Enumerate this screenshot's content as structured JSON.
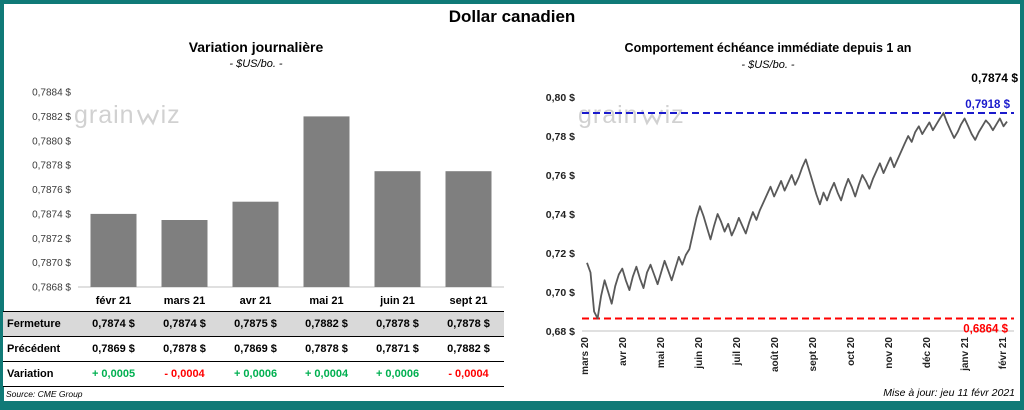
{
  "page": {
    "title": "Dollar canadien",
    "source": "Source: CME Group",
    "updated": "Mise à jour: jeu 11 févr 2021",
    "watermark": {
      "part1": "grain",
      "part2": "iz"
    }
  },
  "theme": {
    "teal": "#107a77",
    "positive": "#00b050",
    "negative": "#ff0000",
    "shaded_row": "#d9d9d9",
    "watermark_gray": "#c9c9c9"
  },
  "chart_data": [
    {
      "type": "bar",
      "title": "Variation journalière",
      "subtitle": "- $US/bo. -",
      "categories": [
        "févr 21",
        "mars 21",
        "avr 21",
        "mai 21",
        "juin 21",
        "sept 21"
      ],
      "values": [
        0.7874,
        0.78735,
        0.7875,
        0.7882,
        0.78775,
        0.78775
      ],
      "ylim": [
        0.7868,
        0.7884
      ],
      "ytick_values": [
        0.7868,
        0.787,
        0.7872,
        0.7874,
        0.7876,
        0.7878,
        0.788,
        0.7882,
        0.7884
      ],
      "ytick_labels": [
        "0,7868 $",
        "0,7870 $",
        "0,7872 $",
        "0,7874 $",
        "0,7876 $",
        "0,7878 $",
        "0,7880 $",
        "0,7882 $",
        "0,7884 $"
      ],
      "bar_color": "#7f7f7f",
      "grid": false,
      "legend": false
    },
    {
      "type": "line",
      "title": "Comportement échéance immédiate depuis 1 an",
      "subtitle": "- $US/bo. -",
      "categories": [
        "mars 20",
        "avr 20",
        "mai 20",
        "juin 20",
        "juil 20",
        "août 20",
        "sept 20",
        "oct 20",
        "nov 20",
        "déc 20",
        "janv 21",
        "févr 21"
      ],
      "values": [
        0.715,
        0.71,
        0.69,
        0.6864,
        0.698,
        0.706,
        0.7,
        0.694,
        0.703,
        0.709,
        0.712,
        0.706,
        0.701,
        0.708,
        0.713,
        0.707,
        0.702,
        0.71,
        0.714,
        0.709,
        0.704,
        0.71,
        0.716,
        0.711,
        0.706,
        0.712,
        0.718,
        0.714,
        0.719,
        0.722,
        0.73,
        0.738,
        0.744,
        0.739,
        0.733,
        0.727,
        0.734,
        0.74,
        0.736,
        0.731,
        0.735,
        0.729,
        0.733,
        0.738,
        0.734,
        0.73,
        0.736,
        0.741,
        0.737,
        0.742,
        0.746,
        0.75,
        0.754,
        0.749,
        0.753,
        0.757,
        0.752,
        0.756,
        0.76,
        0.755,
        0.759,
        0.764,
        0.768,
        0.762,
        0.756,
        0.75,
        0.745,
        0.751,
        0.747,
        0.752,
        0.756,
        0.751,
        0.747,
        0.753,
        0.758,
        0.754,
        0.749,
        0.755,
        0.76,
        0.757,
        0.753,
        0.758,
        0.762,
        0.766,
        0.761,
        0.765,
        0.769,
        0.764,
        0.768,
        0.772,
        0.776,
        0.78,
        0.777,
        0.782,
        0.785,
        0.781,
        0.784,
        0.787,
        0.783,
        0.786,
        0.789,
        0.7918,
        0.787,
        0.783,
        0.779,
        0.782,
        0.786,
        0.789,
        0.785,
        0.781,
        0.778,
        0.782,
        0.785,
        0.788,
        0.786,
        0.783,
        0.786,
        0.789,
        0.785,
        0.7874
      ],
      "ylim": [
        0.68,
        0.8
      ],
      "ytick_values": [
        0.68,
        0.7,
        0.72,
        0.74,
        0.76,
        0.78,
        0.8
      ],
      "ytick_labels": [
        "0,68 $",
        "0,70 $",
        "0,72 $",
        "0,74 $",
        "0,76 $",
        "0,78 $",
        "0,80 $"
      ],
      "line_color": "#595959",
      "grid": false,
      "legend": false,
      "annotations": {
        "last": {
          "label": "0,7874 $",
          "color": "#000000"
        },
        "high_line": {
          "value": 0.7918,
          "label": "0,7918 $",
          "color": "#1a1acc",
          "style": "dashed"
        },
        "low_line": {
          "value": 0.6864,
          "label": "0,6864 $",
          "color": "#ff0000",
          "style": "dashed"
        }
      }
    }
  ],
  "table": {
    "rows": [
      {
        "label": "Fermeture",
        "shaded": true,
        "values": [
          "0,7874  $",
          "0,7874  $",
          "0,7875  $",
          "0,7882  $",
          "0,7878  $",
          "0,7878  $"
        ]
      },
      {
        "label": "Précédent",
        "values": [
          "0,7869  $",
          "0,7878  $",
          "0,7869  $",
          "0,7878  $",
          "0,7871  $",
          "0,7882  $"
        ]
      },
      {
        "label": "Variation",
        "colorize": true,
        "values": [
          "+ 0,0005",
          "- 0,0004",
          "+ 0,0006",
          "+ 0,0004",
          "+ 0,0006",
          "- 0,0004"
        ]
      }
    ]
  }
}
